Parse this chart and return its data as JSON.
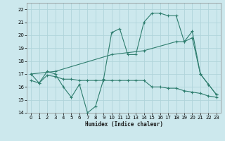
{
  "xlabel": "Humidex (Indice chaleur)",
  "bg_color": "#cce8ed",
  "grid_color": "#b0d4da",
  "line_color": "#2e7d6e",
  "xlim": [
    0,
    23
  ],
  "ylim": [
    14,
    22.5
  ],
  "xticks": [
    0,
    1,
    2,
    3,
    4,
    5,
    6,
    7,
    8,
    9,
    10,
    11,
    12,
    13,
    14,
    15,
    16,
    17,
    18,
    19,
    20,
    21,
    22,
    23
  ],
  "yticks": [
    14,
    15,
    16,
    17,
    18,
    19,
    20,
    21,
    22
  ],
  "series": [
    {
      "x": [
        0,
        1,
        2,
        3,
        4,
        5,
        6,
        7,
        8,
        9,
        10,
        11,
        12,
        13,
        14,
        15,
        16,
        17,
        18,
        19,
        20,
        21,
        22,
        23
      ],
      "y": [
        17.0,
        16.3,
        17.2,
        17.0,
        16.0,
        15.2,
        16.2,
        14.0,
        14.5,
        16.6,
        20.2,
        20.5,
        18.5,
        18.5,
        21.0,
        21.7,
        21.7,
        21.5,
        21.5,
        19.5,
        20.3,
        17.0,
        16.2,
        15.4
      ]
    },
    {
      "x": [
        0,
        1,
        2,
        3,
        4,
        5,
        6,
        7,
        8,
        9,
        10,
        11,
        12,
        13,
        14,
        15,
        16,
        17,
        18,
        19,
        20,
        21,
        22,
        23
      ],
      "y": [
        16.5,
        16.3,
        16.9,
        16.8,
        16.6,
        16.6,
        16.5,
        16.5,
        16.5,
        16.5,
        16.5,
        16.5,
        16.5,
        16.5,
        16.5,
        16.0,
        16.0,
        15.9,
        15.9,
        15.7,
        15.6,
        15.5,
        15.3,
        15.2
      ]
    },
    {
      "x": [
        0,
        3,
        10,
        14,
        18,
        19,
        20,
        21,
        22,
        23
      ],
      "y": [
        17.0,
        17.2,
        18.5,
        18.8,
        19.5,
        19.5,
        19.8,
        17.0,
        16.2,
        15.4
      ]
    }
  ]
}
